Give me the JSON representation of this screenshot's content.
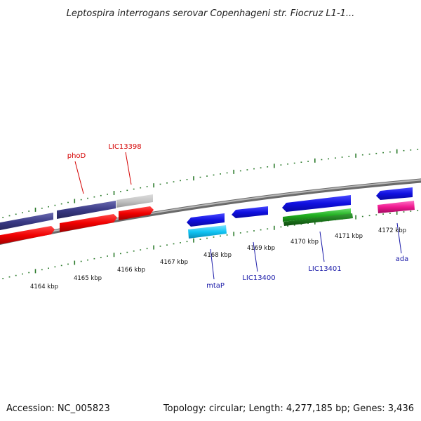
{
  "title": "Leptospira interrogans serovar Copenhageni str. Fiocruz L1-1...",
  "footer": {
    "accession": "Accession: NC_005823",
    "summary": "Topology: circular; Length: 4,277,185 bp; Genes: 3,436"
  },
  "colors": {
    "backbone": "#8c8c8c",
    "tick_green": "#2a7a2a",
    "label_red": "#d40000",
    "label_blue": "#1a1aa8"
  },
  "ticks": [
    {
      "label": "4164 kbp"
    },
    {
      "label": "4165 kbp"
    },
    {
      "label": "4166 kbp"
    },
    {
      "label": "4167 kbp"
    },
    {
      "label": "4168 kbp"
    },
    {
      "label": "4169 kbp"
    },
    {
      "label": "4170 kbp"
    },
    {
      "label": "4171 kbp"
    },
    {
      "label": "4172 kbp"
    }
  ],
  "gene_labels": [
    {
      "text": "phoD",
      "color": "#d40000"
    },
    {
      "text": "LIC13398",
      "color": "#d40000"
    },
    {
      "text": "mtaP",
      "color": "#1a1aa8"
    },
    {
      "text": "LIC13400",
      "color": "#1a1aa8"
    },
    {
      "text": "LIC13401",
      "color": "#1a1aa8"
    },
    {
      "text": "ada",
      "color": "#1a1aa8"
    }
  ]
}
